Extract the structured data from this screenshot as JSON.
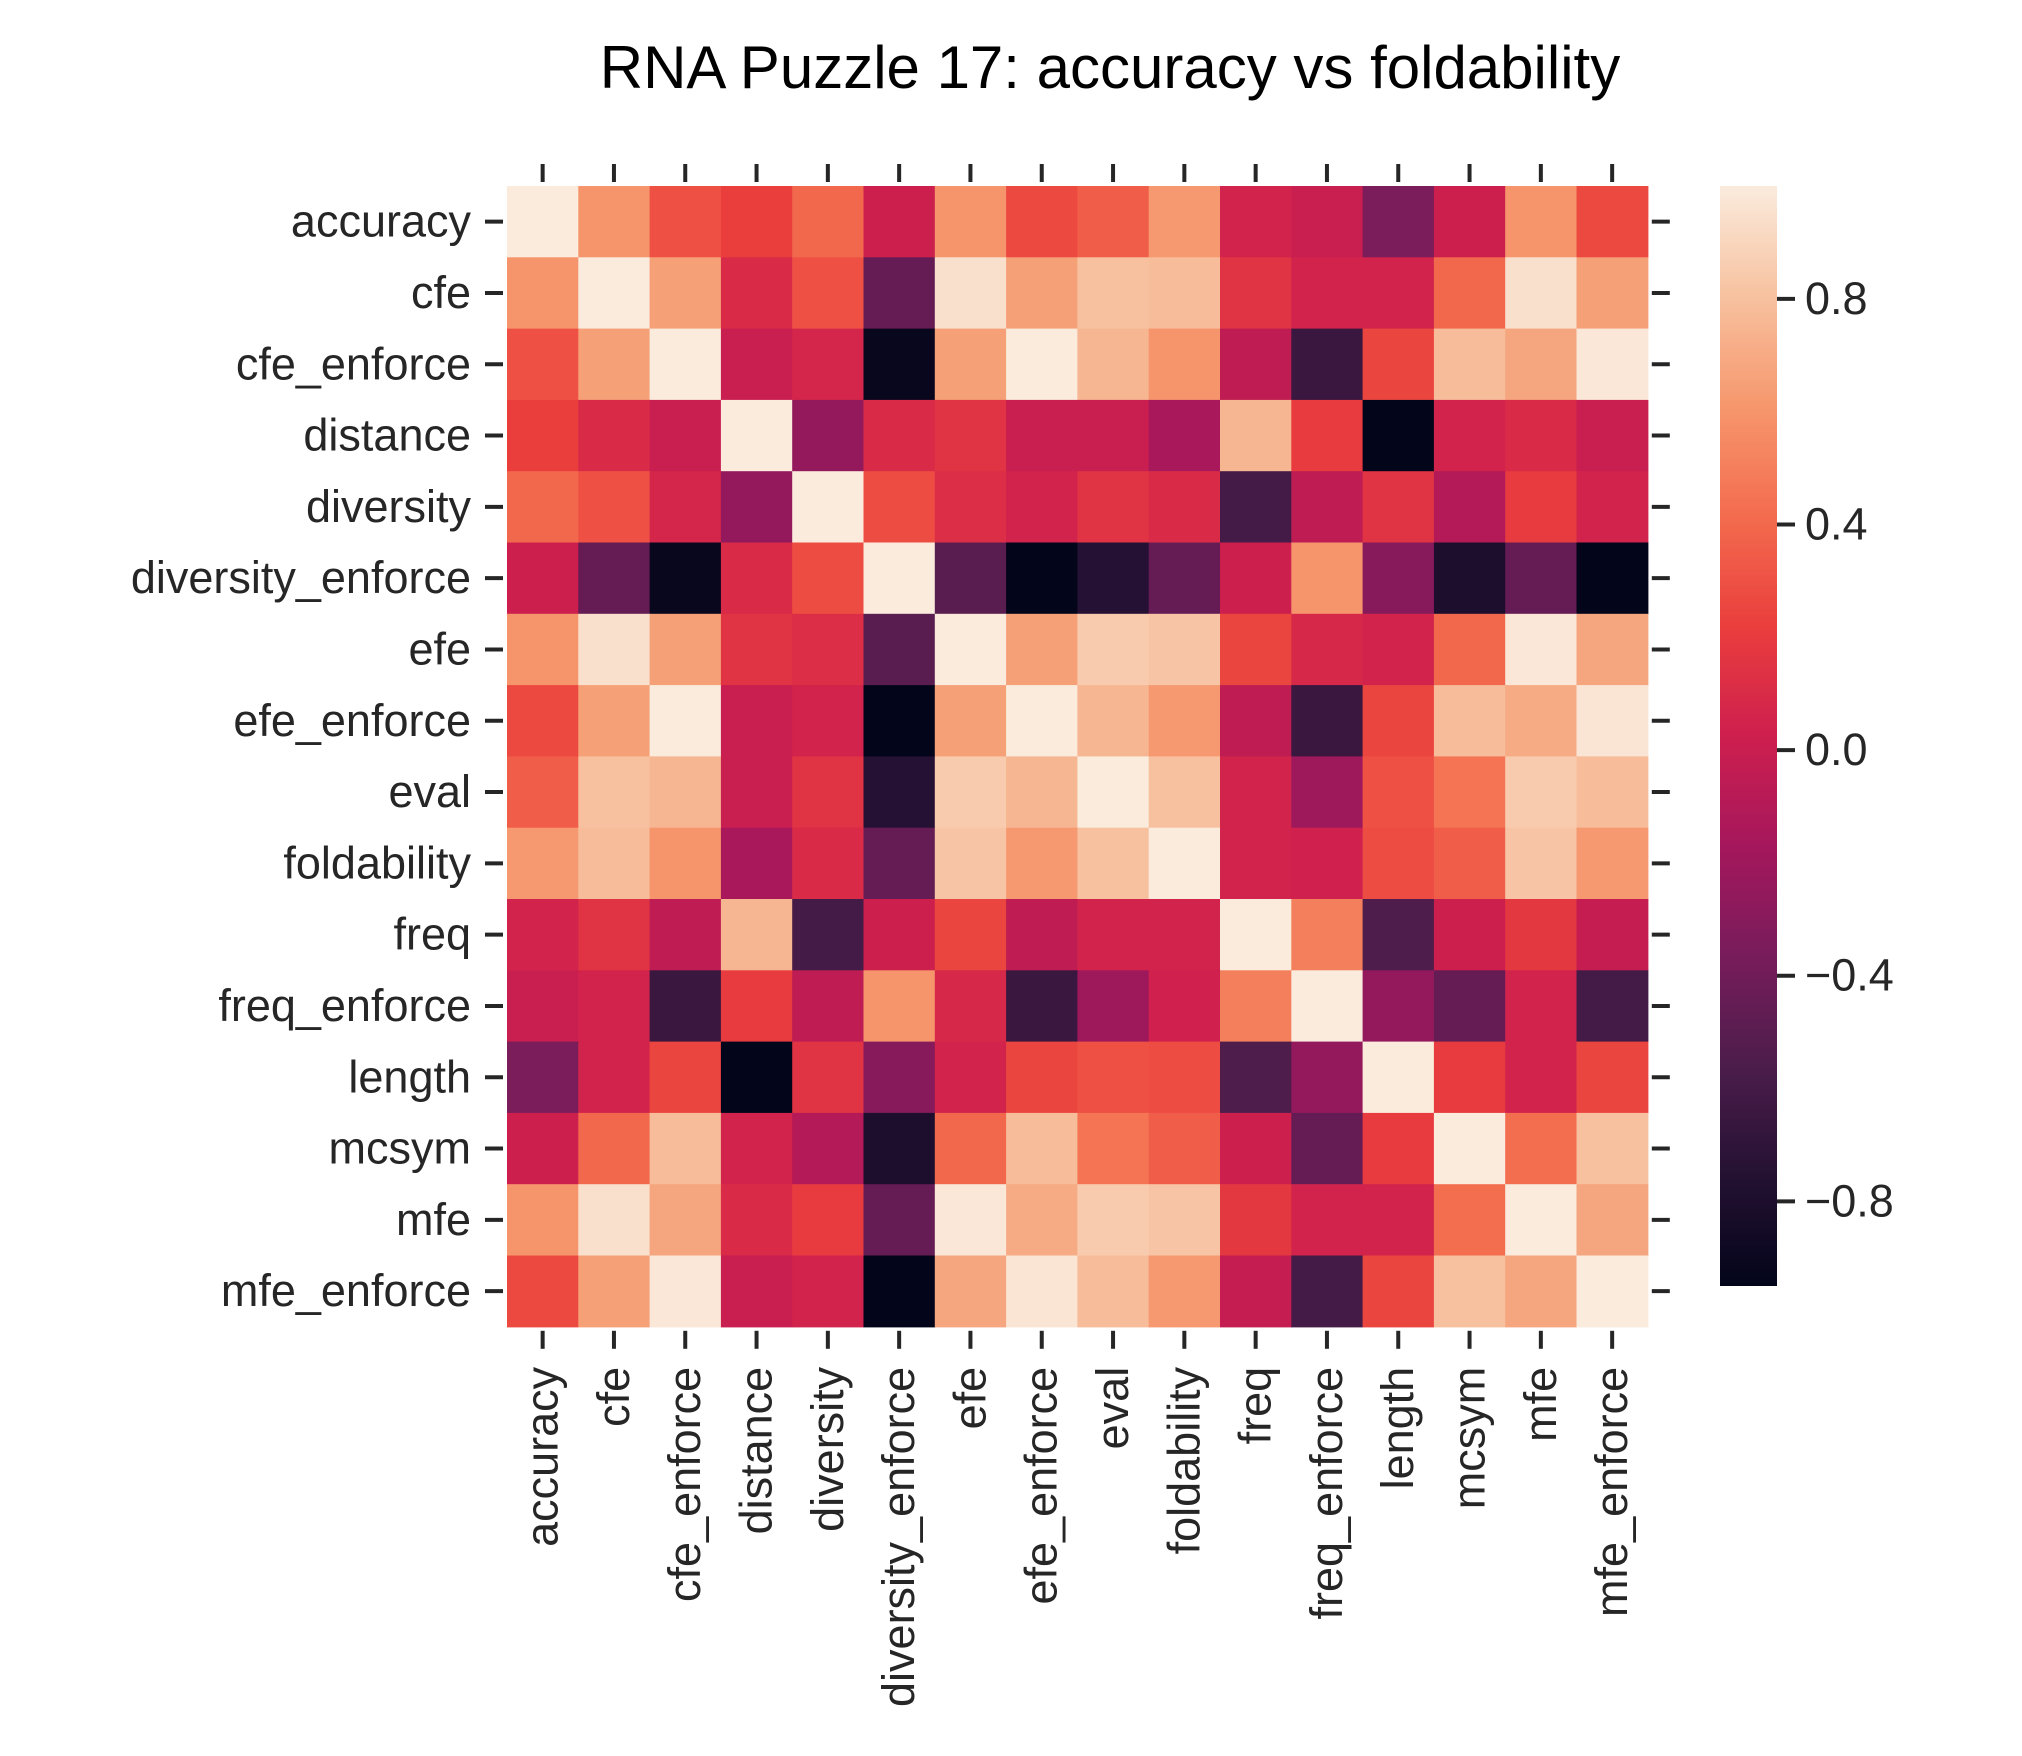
{
  "chart_data": {
    "type": "heatmap",
    "title": "RNA Puzzle 17: accuracy vs foldability",
    "labels": [
      "accuracy",
      "cfe",
      "cfe_enforce",
      "distance",
      "diversity",
      "diversity_enforce",
      "efe",
      "efe_enforce",
      "eval",
      "foldability",
      "freq",
      "freq_enforce",
      "length",
      "mcsym",
      "mfe",
      "mfe_enforce"
    ],
    "values": [
      [
        1.0,
        0.6,
        0.3,
        0.22,
        0.4,
        0.02,
        0.6,
        0.27,
        0.35,
        0.62,
        0.05,
        0.0,
        -0.35,
        0.02,
        0.6,
        0.27
      ],
      [
        0.6,
        1.0,
        0.65,
        0.1,
        0.3,
        -0.45,
        0.95,
        0.65,
        0.8,
        0.78,
        0.15,
        0.05,
        0.05,
        0.4,
        0.95,
        0.65
      ],
      [
        0.3,
        0.65,
        1.0,
        0.0,
        0.07,
        -0.92,
        0.65,
        1.0,
        0.75,
        0.6,
        -0.05,
        -0.65,
        0.25,
        0.78,
        0.68,
        0.98
      ],
      [
        0.22,
        0.1,
        0.0,
        1.0,
        -0.25,
        0.1,
        0.15,
        0.0,
        0.0,
        -0.15,
        0.75,
        0.2,
        -0.95,
        0.05,
        0.1,
        0.0
      ],
      [
        0.4,
        0.3,
        0.07,
        -0.25,
        1.0,
        0.28,
        0.12,
        0.05,
        0.15,
        0.1,
        -0.6,
        -0.05,
        0.15,
        -0.1,
        0.2,
        0.05
      ],
      [
        0.02,
        -0.45,
        -0.92,
        0.1,
        0.28,
        1.0,
        -0.5,
        -0.95,
        -0.75,
        -0.45,
        0.02,
        0.6,
        -0.3,
        -0.8,
        -0.45,
        -0.95
      ],
      [
        0.6,
        0.95,
        0.65,
        0.15,
        0.12,
        -0.5,
        1.0,
        0.65,
        0.85,
        0.82,
        0.25,
        0.08,
        0.05,
        0.4,
        0.98,
        0.68
      ],
      [
        0.27,
        0.65,
        1.0,
        0.0,
        0.05,
        -0.95,
        0.65,
        1.0,
        0.75,
        0.62,
        -0.05,
        -0.65,
        0.25,
        0.78,
        0.7,
        0.97
      ],
      [
        0.35,
        0.8,
        0.75,
        0.0,
        0.15,
        -0.75,
        0.85,
        0.75,
        1.0,
        0.8,
        0.05,
        -0.2,
        0.3,
        0.45,
        0.85,
        0.78
      ],
      [
        0.62,
        0.78,
        0.6,
        -0.15,
        0.1,
        -0.45,
        0.82,
        0.62,
        0.8,
        1.0,
        0.05,
        0.03,
        0.28,
        0.35,
        0.82,
        0.62
      ],
      [
        0.05,
        0.15,
        -0.05,
        0.75,
        -0.6,
        0.02,
        0.25,
        -0.05,
        0.05,
        0.05,
        1.0,
        0.5,
        -0.55,
        0.02,
        0.18,
        -0.02
      ],
      [
        0.0,
        0.05,
        -0.65,
        0.2,
        -0.05,
        0.6,
        0.08,
        -0.65,
        -0.2,
        0.03,
        0.5,
        1.0,
        -0.25,
        -0.45,
        0.05,
        -0.6
      ],
      [
        -0.35,
        0.05,
        0.25,
        -0.95,
        0.15,
        -0.3,
        0.05,
        0.25,
        0.3,
        0.28,
        -0.55,
        -0.25,
        1.0,
        0.2,
        0.05,
        0.25
      ],
      [
        0.02,
        0.4,
        0.78,
        0.05,
        -0.1,
        -0.8,
        0.4,
        0.78,
        0.45,
        0.35,
        0.02,
        -0.45,
        0.2,
        1.0,
        0.42,
        0.8
      ],
      [
        0.6,
        0.95,
        0.68,
        0.1,
        0.2,
        -0.45,
        0.98,
        0.7,
        0.85,
        0.82,
        0.18,
        0.05,
        0.05,
        0.42,
        1.0,
        0.68
      ],
      [
        0.27,
        0.65,
        0.98,
        0.0,
        0.05,
        -0.95,
        0.68,
        0.97,
        0.78,
        0.62,
        -0.02,
        -0.6,
        0.25,
        0.8,
        0.68,
        1.0
      ]
    ],
    "colorbar": {
      "vmin": -0.95,
      "vmax": 1.0,
      "ticks": [
        0.8,
        0.4,
        0.0,
        -0.4,
        -0.8
      ],
      "tick_labels": [
        "0.8",
        "0.4",
        "0.0",
        "−0.4",
        "−0.8"
      ],
      "colormap": "rocket"
    },
    "xlabel": "",
    "ylabel": "",
    "grid": false
  }
}
